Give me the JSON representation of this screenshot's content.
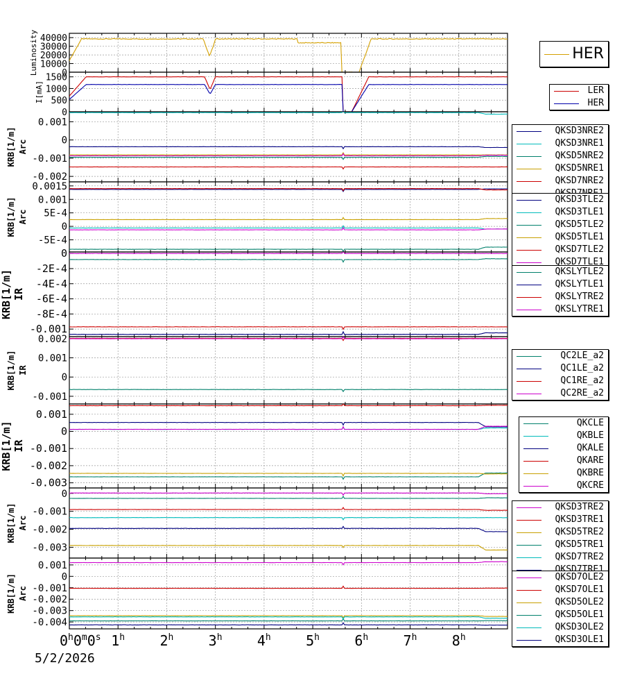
{
  "chart_data": [
    {
      "type": "line",
      "ylabel": "Luminosity",
      "yticks": [
        "40000",
        "30000",
        "20000",
        "10000",
        "0"
      ],
      "ylim": [
        0,
        45000
      ],
      "legend": [
        "HER"
      ],
      "legend_big": true,
      "series": [
        {
          "name": "HER",
          "color": "#d4a000",
          "profile": "lumi",
          "base": 38500,
          "ramp": 20000
        }
      ]
    },
    {
      "type": "line",
      "ylabel": "I[mA]",
      "yticks": [
        "1500",
        "1000",
        "500",
        "0"
      ],
      "ylim": [
        0,
        1700
      ],
      "legend": [
        "LER",
        "HER"
      ],
      "series": [
        {
          "name": "LER",
          "color": "#cc0000",
          "profile": "beam",
          "base": 1500,
          "ramp": 550
        },
        {
          "name": "HER",
          "color": "#0000aa",
          "profile": "beam",
          "base": 1170,
          "ramp": 420
        }
      ]
    },
    {
      "type": "line",
      "ylabel": "KRB[1/m]",
      "ylabel2": "Arc",
      "yticks": [
        "0.001",
        "0",
        "-0.001",
        "-0.002"
      ],
      "ylim": [
        -0.0023,
        0.00155
      ],
      "legend": [
        "QKSD3NRE2",
        "QKSD3NRE1",
        "QKSD5NRE2",
        "QKSD5NRE1",
        "QKSD7NRE2",
        "QKSD7NRE1"
      ],
      "series": [
        {
          "name": "QKSD3NRE2",
          "color": "#000080",
          "base": -0.00037,
          "step": -4e-05
        },
        {
          "name": "QKSD3NRE1",
          "color": "#00bbbb",
          "base": 0.0015,
          "step": -8e-05
        },
        {
          "name": "QKSD5NRE2",
          "color": "#00806b",
          "base": -0.00095,
          "step": 5e-05
        },
        {
          "name": "QKSD5NRE1",
          "color": "#c8a000",
          "base": -0.00082,
          "step": 0
        },
        {
          "name": "QKSD7NRE2",
          "color": "#cc0000",
          "base": -0.00148,
          "step": 0
        },
        {
          "name": "QKSD7NRE1",
          "color": "#cc00cc",
          "base": -0.00087,
          "step": 3e-05
        }
      ]
    },
    {
      "type": "line",
      "ylabel": "KRB[1/m]",
      "ylabel2": "Arc",
      "yticks": [
        "0.0015",
        "0.001",
        "5E-4",
        "0",
        "-5E-4"
      ],
      "ylim": [
        -0.00095,
        0.00165
      ],
      "legend": [
        "QKSD3TLE2",
        "QKSD3TLE1",
        "QKSD5TLE2",
        "QKSD5TLE1",
        "QKSD7TLE2",
        "QKSD7TLE1"
      ],
      "series": [
        {
          "name": "QKSD3TLE2",
          "color": "#000080",
          "base": 0.00137,
          "step": 2e-05
        },
        {
          "name": "QKSD3TLE1",
          "color": "#00bbbb",
          "base": -6e-05,
          "step": -4e-05
        },
        {
          "name": "QKSD5TLE2",
          "color": "#00806b",
          "base": -0.00085,
          "step": 8e-05
        },
        {
          "name": "QKSD5TLE1",
          "color": "#c8a000",
          "base": 0.00025,
          "step": 4e-05
        },
        {
          "name": "QKSD7TLE2",
          "color": "#cc0000",
          "base": 0.0014,
          "step": -5e-05
        },
        {
          "name": "QKSD7TLE1",
          "color": "#cc00cc",
          "base": -0.00013,
          "step": 3e-05
        }
      ]
    },
    {
      "type": "line",
      "ylabel": "KRB[1/m]",
      "ylabel2": "IR",
      "yticks": [
        "0",
        "-2E-4",
        "-4E-4",
        "-6E-4",
        "-8E-4",
        "-0.001"
      ],
      "ylim": [
        -0.0011,
        2e-05
      ],
      "big_label": true,
      "legend": [
        "QKSLYTLE2",
        "QKSLYTLE1",
        "QKSLYTRE2",
        "QKSLYTRE1"
      ],
      "series": [
        {
          "name": "QKSLYTLE2",
          "color": "#00806b",
          "base": -8e-05,
          "step": 1e-05
        },
        {
          "name": "QKSLYTLE1",
          "color": "#000080",
          "base": -0.00107,
          "step": 2e-05
        },
        {
          "name": "QKSLYTRE2",
          "color": "#cc0000",
          "base": -0.00097,
          "step": 0
        },
        {
          "name": "QKSLYTRE1",
          "color": "#cc00cc",
          "base": 0.0,
          "step": 0
        }
      ]
    },
    {
      "type": "line",
      "ylabel": "KRB[1/m]",
      "ylabel2": "IR",
      "yticks": [
        "0.002",
        "0.001",
        "0",
        "-0.001"
      ],
      "ylim": [
        -0.0014,
        0.0021
      ],
      "legend": [
        "QC2LE_a2",
        "QC1LE_a2",
        "QC1RE_a2",
        "QC2RE_a2"
      ],
      "series": [
        {
          "name": "QC2LE_a2",
          "color": "#00806b",
          "base": -0.00065,
          "step": 0
        },
        {
          "name": "QC1LE_a2",
          "color": "#000080",
          "base": 0.002,
          "step": 0
        },
        {
          "name": "QC1RE_a2",
          "color": "#cc0000",
          "base": 0.00201,
          "step": 0
        },
        {
          "name": "QC2RE_a2",
          "color": "#cc00cc",
          "base": 0.00199,
          "step": 0
        }
      ]
    },
    {
      "type": "line",
      "ylabel": "KRB[1/m]",
      "ylabel2": "IR",
      "yticks": [
        "0.001",
        "0",
        "-0.001",
        "-0.002",
        "-0.003"
      ],
      "ylim": [
        -0.0033,
        0.0016
      ],
      "big_label": true,
      "legend": [
        "QKCLE",
        "QKBLE",
        "QKALE",
        "QKARE",
        "QKBRE",
        "QKCRE"
      ],
      "series": [
        {
          "name": "QKCLE",
          "color": "#00806b",
          "base": -0.00265,
          "step": 0.00022
        },
        {
          "name": "QKBLE",
          "color": "#00bbbb",
          "base": 0.00012,
          "step": 8e-05
        },
        {
          "name": "QKALE",
          "color": "#000080",
          "base": 0.00052,
          "step": -0.00025
        },
        {
          "name": "QKARE",
          "color": "#cc0000",
          "base": 0.0015,
          "step": 2e-05
        },
        {
          "name": "QKBRE",
          "color": "#c8a000",
          "base": -0.00245,
          "step": -3e-05
        },
        {
          "name": "QKCRE",
          "color": "#cc00cc",
          "base": 0.00012,
          "step": 0.00018
        }
      ]
    },
    {
      "type": "line",
      "ylabel": "KRB[1/m]",
      "ylabel2": "Arc",
      "yticks": [
        "0",
        "-0.001",
        "-0.002",
        "-0.003"
      ],
      "ylim": [
        -0.0036,
        0.0003
      ],
      "legend": [
        "QKSD3TRE2",
        "QKSD3TRE1",
        "QKSD5TRE2",
        "QKSD5TRE1",
        "QKSD7TRE2",
        "QKSD7TRE1"
      ],
      "series": [
        {
          "name": "QKSD3TRE2",
          "color": "#cc00cc",
          "base": 2e-05,
          "step": -4e-05
        },
        {
          "name": "QKSD3TRE1",
          "color": "#cc0000",
          "base": -0.0009,
          "step": -4e-05
        },
        {
          "name": "QKSD5TRE2",
          "color": "#c8a000",
          "base": -0.0029,
          "step": -0.00025
        },
        {
          "name": "QKSD5TRE1",
          "color": "#00806b",
          "base": -0.00028,
          "step": 3e-05
        },
        {
          "name": "QKSD7TRE2",
          "color": "#00bbbb",
          "base": -0.00135,
          "step": 0
        },
        {
          "name": "QKSD7TRE1",
          "color": "#000080",
          "base": -0.00195,
          "step": -0.00018
        }
      ]
    },
    {
      "type": "line",
      "ylabel": "KRB[1/m]",
      "ylabel2": "Arc",
      "yticks": [
        "0.001",
        "0",
        "-0.001",
        "-0.002",
        "-0.003",
        "-0.004"
      ],
      "ylim": [
        -0.0046,
        0.0016
      ],
      "legend": [
        "QKSD7OLE2",
        "QKSD7OLE1",
        "QKSD5OLE2",
        "QKSD5OLE1",
        "QKSD3OLE2",
        "QKSD3OLE1"
      ],
      "series": [
        {
          "name": "QKSD7OLE2",
          "color": "#cc00cc",
          "base": 0.0012,
          "step": 8e-05
        },
        {
          "name": "QKSD7OLE1",
          "color": "#cc0000",
          "base": -0.00105,
          "step": 2e-05
        },
        {
          "name": "QKSD5OLE2",
          "color": "#c8a000",
          "base": -0.00345,
          "step": -6e-05
        },
        {
          "name": "QKSD5OLE1",
          "color": "#00806b",
          "base": -0.0039,
          "step": 2e-05
        },
        {
          "name": "QKSD3OLE2",
          "color": "#00bbbb",
          "base": -0.00355,
          "step": -0.00012
        },
        {
          "name": "QKSD3OLE1",
          "color": "#000080",
          "base": -0.00425,
          "step": -2e-05
        }
      ]
    }
  ],
  "x_axis": {
    "hours": [
      0,
      1,
      2,
      3,
      4,
      5,
      6,
      7,
      8
    ],
    "labels": [
      {
        "h": 0,
        "text": "0",
        "sup": "h"
      },
      {
        "h": 1,
        "text": "1",
        "sup": "h"
      },
      {
        "h": 2,
        "text": "2",
        "sup": "h"
      },
      {
        "h": 3,
        "text": "3",
        "sup": "h"
      },
      {
        "h": 4,
        "text": "4",
        "sup": "h"
      },
      {
        "h": 5,
        "text": "5",
        "sup": "h"
      },
      {
        "h": 6,
        "text": "6",
        "sup": "h"
      },
      {
        "h": 7,
        "text": "7",
        "sup": "h"
      },
      {
        "h": 8,
        "text": "8",
        "sup": "h"
      }
    ],
    "first_label_parts": [
      {
        "t": "0",
        "s": "m"
      },
      {
        "t": "0",
        "s": "s"
      }
    ],
    "xlim": [
      0,
      9
    ]
  },
  "date": "5/2/2026"
}
